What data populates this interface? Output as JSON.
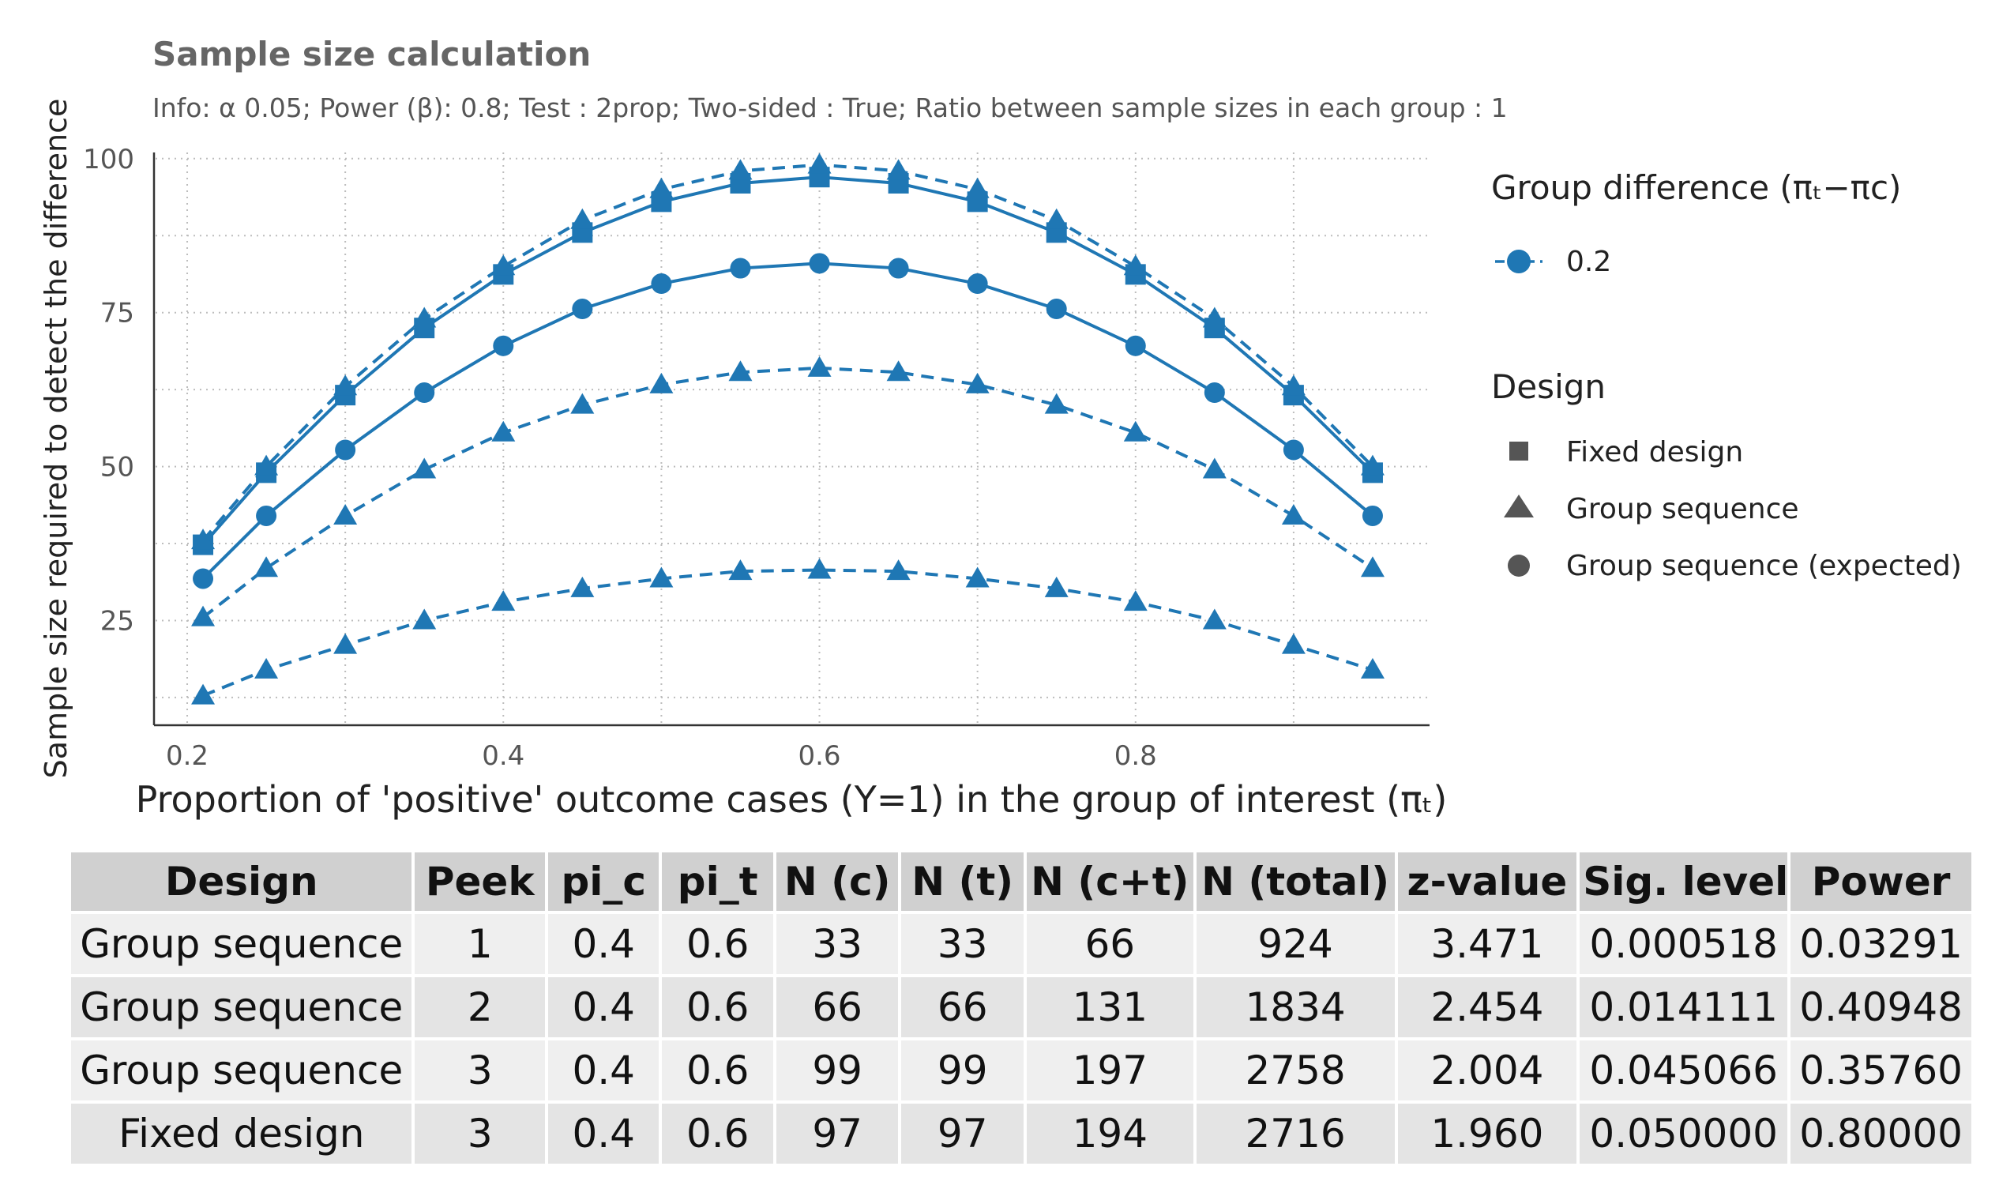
{
  "chart_data": {
    "type": "line",
    "title": "Sample size calculation",
    "subtitle": "Info:  α 0.05; Power (β): 0.8; Test : 2prop; Two-sided : True; Ratio between sample sizes in each group : 1",
    "xlabel": "Proportion of 'positive' outcome cases (Y=1) in the group of interest (πₜ)",
    "ylabel": "Sample size required to detect the difference",
    "xlim": [
      0.18,
      0.985
    ],
    "ylim": [
      8,
      101
    ],
    "x_ticks": [
      0.2,
      0.4,
      0.6,
      0.8
    ],
    "x_tick_labels": [
      "0.2",
      "0.4",
      "0.6",
      "0.8"
    ],
    "y_ticks": [
      25,
      50,
      75,
      100
    ],
    "y_tick_labels": [
      "25",
      "50",
      "75",
      "100"
    ],
    "grid": true,
    "legend_position": "right",
    "color": "#1f77b4",
    "x": [
      0.21,
      0.25,
      0.3,
      0.35,
      0.4,
      0.45,
      0.5,
      0.55,
      0.6,
      0.65,
      0.7,
      0.75,
      0.8,
      0.85,
      0.9,
      0.95
    ],
    "series": [
      {
        "marker": "square",
        "line": "solid",
        "values": [
          37.3,
          49,
          61.6,
          72.5,
          81.2,
          88,
          93,
          96,
          97,
          96,
          93,
          88,
          81.2,
          72.5,
          61.6,
          49
        ]
      },
      {
        "marker": "triangle",
        "line": "dashed",
        "values": [
          38,
          50,
          63,
          74,
          82.5,
          90,
          95,
          98,
          99,
          98,
          95,
          90,
          82.5,
          74,
          63,
          50
        ]
      },
      {
        "marker": "circle",
        "line": "solid",
        "values": [
          31.8,
          42,
          52.7,
          62,
          69.6,
          75.6,
          79.7,
          82.2,
          83,
          82.2,
          79.7,
          75.6,
          69.6,
          62,
          52.7,
          42
        ]
      },
      {
        "marker": "triangle",
        "line": "dashed",
        "values": [
          25.5,
          33.5,
          42,
          49.5,
          55.5,
          60,
          63.3,
          65.3,
          66,
          65.3,
          63.3,
          60,
          55.5,
          49.5,
          42,
          33.5
        ]
      },
      {
        "marker": "triangle",
        "line": "dashed",
        "values": [
          12.8,
          17,
          21,
          25,
          28,
          30.2,
          31.8,
          33,
          33.2,
          33,
          31.8,
          30.2,
          28,
          25,
          21,
          17
        ]
      }
    ],
    "legend": {
      "group_title": "Group difference (πₜ−πc)",
      "group_items": [
        "0.2"
      ],
      "design_title": "Design",
      "design_items": [
        {
          "label": "Fixed design",
          "marker": "square"
        },
        {
          "label": "Group sequence",
          "marker": "triangle"
        },
        {
          "label": "Group sequence (expected)",
          "marker": "circle"
        }
      ]
    }
  },
  "table": {
    "headers": [
      "Design",
      "Peek",
      "pi_c",
      "pi_t",
      "N (c)",
      "N (t)",
      "N (c+t)",
      "N (total)",
      "z-value",
      "Sig. level",
      "Power"
    ],
    "rows": [
      [
        "Group sequence",
        "1",
        "0.4",
        "0.6",
        "33",
        "33",
        "66",
        "924",
        "3.471",
        "0.000518",
        "0.03291"
      ],
      [
        "Group sequence",
        "2",
        "0.4",
        "0.6",
        "66",
        "66",
        "131",
        "1834",
        "2.454",
        "0.014111",
        "0.40948"
      ],
      [
        "Group sequence",
        "3",
        "0.4",
        "0.6",
        "99",
        "99",
        "197",
        "2758",
        "2.004",
        "0.045066",
        "0.35760"
      ],
      [
        "Fixed design",
        "3",
        "0.4",
        "0.6",
        "97",
        "97",
        "194",
        "2716",
        "1.960",
        "0.050000",
        "0.80000"
      ]
    ]
  }
}
